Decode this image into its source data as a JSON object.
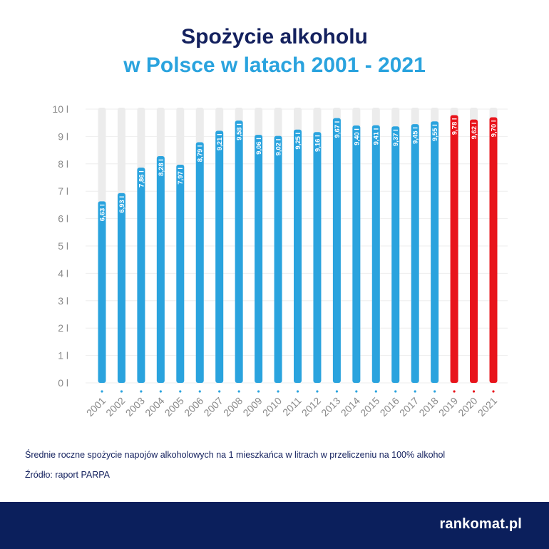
{
  "title_line1": "Spożycie alkoholu",
  "title_line2": "w Polsce w latach 2001 - 2021",
  "footnote": "Średnie roczne spożycie napojów alkoholowych na 1 mieszkańca w litrach w przeliczeniu na 100% alkohol",
  "source": "Źródło: raport PARPA",
  "brand": "rankomat.pl",
  "colors": {
    "title_dark": "#14215e",
    "title_light": "#2aa3de",
    "bar_blue": "#2aa3de",
    "bar_red": "#e8141b",
    "track": "#ececec",
    "footer_bg": "#0b1f5c"
  },
  "chart_data": {
    "type": "bar",
    "categories": [
      "2001",
      "2002",
      "2003",
      "2004",
      "2005",
      "2006",
      "2007",
      "2008",
      "2009",
      "2010",
      "2011",
      "2012",
      "2013",
      "2014",
      "2015",
      "2016",
      "2017",
      "2018",
      "2019",
      "2020",
      "2021"
    ],
    "values": [
      6.63,
      6.93,
      7.86,
      8.28,
      7.97,
      8.79,
      9.21,
      9.58,
      9.06,
      9.02,
      9.25,
      9.16,
      9.67,
      9.4,
      9.41,
      9.37,
      9.45,
      9.55,
      9.78,
      9.62,
      9.7
    ],
    "value_labels": [
      "6,63 l",
      "6,93 l",
      "7,86 l",
      "8,28 l",
      "7,97 l",
      "8,79 l",
      "9,21 l",
      "9,58 l",
      "9,06 l",
      "9,02 l",
      "9,25 l",
      "9,16 l",
      "9,67 l",
      "9,40 l",
      "9,41 l",
      "9,37 l",
      "9,45 l",
      "9,55 l",
      "9,78 l",
      "9,62 l",
      "9,70 l"
    ],
    "highlighted": [
      "2019",
      "2020",
      "2021"
    ],
    "y_ticks": [
      "0 l",
      "1 l",
      "2 l",
      "3 l",
      "4 l",
      "5 l",
      "6 l",
      "7 l",
      "8 l",
      "9 l",
      "10 l"
    ],
    "ylim": [
      0,
      10
    ],
    "grid": true
  }
}
